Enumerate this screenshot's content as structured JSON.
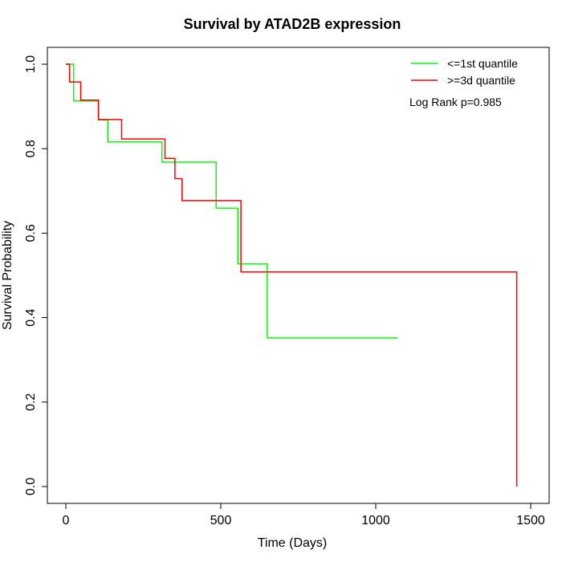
{
  "chart_data": {
    "type": "line",
    "step": true,
    "title": "Survival by ATAD2B expression",
    "xlabel": "Time (Days)",
    "ylabel": "Survival Probability",
    "xlim": [
      0,
      1500
    ],
    "ylim": [
      0,
      1
    ],
    "x_ticks": [
      "0",
      "500",
      "1000",
      "1500"
    ],
    "y_ticks": [
      "0.0",
      "0.2",
      "0.4",
      "0.6",
      "0.8",
      "1.0"
    ],
    "legend_position": "top-right",
    "annotation": "Log Rank p=0.985",
    "grid": false,
    "series": [
      {
        "name": "<=1st quantile",
        "color": "#00ff00",
        "x": [
          0,
          25,
          105,
          135,
          310,
          485,
          555,
          650,
          1070
        ],
        "y": [
          1.0,
          0.913,
          0.868,
          0.816,
          0.768,
          0.659,
          0.527,
          0.352,
          0.352
        ]
      },
      {
        "name": ">=3d quantile",
        "color": "#ff0000",
        "x": [
          0,
          12,
          48,
          105,
          180,
          320,
          352,
          375,
          565,
          1455,
          1455
        ],
        "y": [
          1.0,
          0.958,
          0.915,
          0.869,
          0.823,
          0.777,
          0.729,
          0.677,
          0.508,
          0.508,
          0.0
        ]
      }
    ]
  }
}
